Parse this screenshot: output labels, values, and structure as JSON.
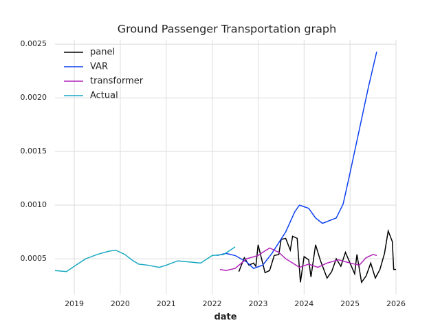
{
  "chart_data": {
    "type": "line",
    "title": "Ground Passenger Transportation graph",
    "xlabel": "date",
    "xlim": [
      2018.58,
      2026
    ],
    "xticks": [
      2019,
      2020,
      2021,
      2022,
      2023,
      2024,
      2025,
      2026
    ],
    "ylim": [
      0.000167,
      0.00254
    ],
    "yticks": [
      0.0005,
      {
        "value": 0.001,
        "label": "0.0010"
      },
      0.0015,
      {
        "value": 0.002,
        "label": "0.0020"
      },
      0.0025
    ],
    "grid": true,
    "legend": "upper left",
    "series": [
      {
        "name": "panel",
        "color": "#000000",
        "x": [
          2022.58,
          2022.7,
          2022.8,
          2022.9,
          2022.95,
          2023.0,
          2023.15,
          2023.25,
          2023.35,
          2023.45,
          2023.5,
          2023.6,
          2023.7,
          2023.75,
          2023.85,
          2023.92,
          2024.0,
          2024.1,
          2024.15,
          2024.25,
          2024.35,
          2024.5,
          2024.6,
          2024.7,
          2024.8,
          2024.9,
          2025.0,
          2025.1,
          2025.15,
          2025.25,
          2025.35,
          2025.45,
          2025.55,
          2025.65,
          2025.75,
          2025.83,
          2025.92,
          2025.95,
          2026.0
        ],
        "values": [
          0.00038,
          0.00051,
          0.00044,
          0.00046,
          0.00043,
          0.00063,
          0.00037,
          0.00039,
          0.00053,
          0.00054,
          0.00068,
          0.00069,
          0.00058,
          0.00071,
          0.00069,
          0.00028,
          0.00052,
          0.00049,
          0.00033,
          0.00063,
          0.00049,
          0.00032,
          0.00038,
          0.0005,
          0.00043,
          0.00056,
          0.00046,
          0.00036,
          0.00054,
          0.00028,
          0.00034,
          0.00046,
          0.00032,
          0.0004,
          0.00055,
          0.00076,
          0.00066,
          0.0004,
          0.0004
        ]
      },
      {
        "name": "VAR",
        "color": "#0b3ff0",
        "x": [
          2022.1,
          2022.3,
          2022.5,
          2022.75,
          2022.9,
          2023.1,
          2023.3,
          2023.6,
          2023.8,
          2023.9,
          2024.1,
          2024.25,
          2024.4,
          2024.7,
          2024.85,
          2025.0,
          2025.2,
          2025.4,
          2025.58
        ],
        "values": [
          0.00053,
          0.00055,
          0.00053,
          0.00047,
          0.00041,
          0.00044,
          0.00055,
          0.00075,
          0.00094,
          0.001,
          0.00097,
          0.00088,
          0.00083,
          0.00088,
          0.00101,
          0.0013,
          0.0017,
          0.0021,
          0.00243
        ]
      },
      {
        "name": "transformer",
        "color": "#b122b8",
        "x": [
          2022.17,
          2022.3,
          2022.5,
          2022.75,
          2023.0,
          2023.1,
          2023.25,
          2023.45,
          2023.6,
          2023.9,
          2024.1,
          2024.3,
          2024.5,
          2024.75,
          2025.0,
          2025.2,
          2025.35,
          2025.5,
          2025.58
        ],
        "values": [
          0.0004,
          0.00039,
          0.00041,
          0.0005,
          0.00053,
          0.00056,
          0.0006,
          0.00056,
          0.0005,
          0.00042,
          0.00045,
          0.00042,
          0.00046,
          0.00049,
          0.00046,
          0.00044,
          0.00051,
          0.00054,
          0.00053
        ]
      },
      {
        "name": "Actual",
        "color": "#17a9c1",
        "x": [
          2018.58,
          2018.83,
          2019.0,
          2019.25,
          2019.5,
          2019.75,
          2019.9,
          2020.1,
          2020.25,
          2020.4,
          2020.6,
          2020.85,
          2021.0,
          2021.25,
          2021.5,
          2021.75,
          2022.0,
          2022.25,
          2022.5
        ],
        "values": [
          0.00039,
          0.00038,
          0.00043,
          0.0005,
          0.00054,
          0.00057,
          0.00058,
          0.00054,
          0.00049,
          0.00045,
          0.00044,
          0.00042,
          0.00044,
          0.00048,
          0.00047,
          0.00046,
          0.00053,
          0.00054,
          0.00061
        ]
      }
    ]
  }
}
